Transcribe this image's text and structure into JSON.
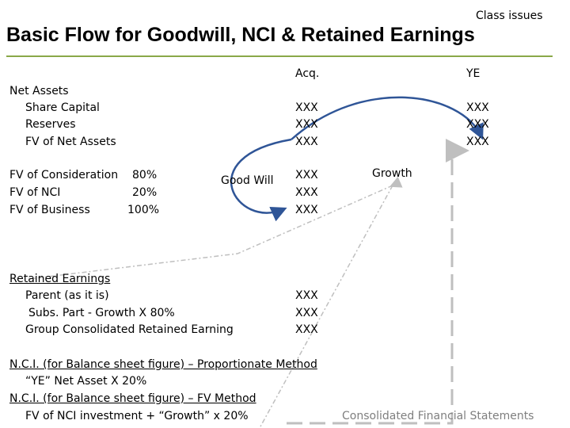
{
  "header": {
    "corner_note": "Class  issues",
    "title": "Basic Flow for Goodwill, NCI & Retained Earnings"
  },
  "columns": {
    "acq": "Acq.",
    "ye": "YE"
  },
  "net_assets": {
    "heading": "Net Assets",
    "rows": [
      "Share Capital",
      "Reserves",
      "FV of Net Assets"
    ],
    "acq_values": [
      "XXX",
      "XXX",
      "XXX"
    ],
    "ye_values": [
      "XXX",
      "XXX",
      "XXX"
    ]
  },
  "consideration": {
    "rows": [
      {
        "label": "FV of Consideration",
        "pct": "80%"
      },
      {
        "label": "FV of NCI",
        "pct": "20%"
      },
      {
        "label": "FV of Business",
        "pct": "100%"
      }
    ],
    "goodwill_label": "Good Will",
    "values": [
      "XXX",
      "XXX",
      "XXX"
    ]
  },
  "growth_label": "Growth",
  "retained_earnings": {
    "heading": "Retained Earnings",
    "rows": [
      "Parent  (as it is)",
      "Subs. Part - Growth  X  80%",
      "Group Consolidated Retained Earning"
    ],
    "values": [
      "XXX",
      "XXX",
      "XXX"
    ]
  },
  "nci": {
    "line1": "N.C.I. (for Balance sheet figure) – Proportionate Method",
    "line2": "“YE” Net Asset  X 20%",
    "line3": "N.C.I. (for Balance sheet figure) – FV Method",
    "line4": "FV of NCI investment + “Growth”  x  20%"
  },
  "footer": "Consolidated Financial Statements",
  "colors": {
    "accent_rule": "#8aa848",
    "arrow": "#2f5597",
    "dashed_gray": "#bfbfbf",
    "footer_text": "#7f7f7f"
  }
}
